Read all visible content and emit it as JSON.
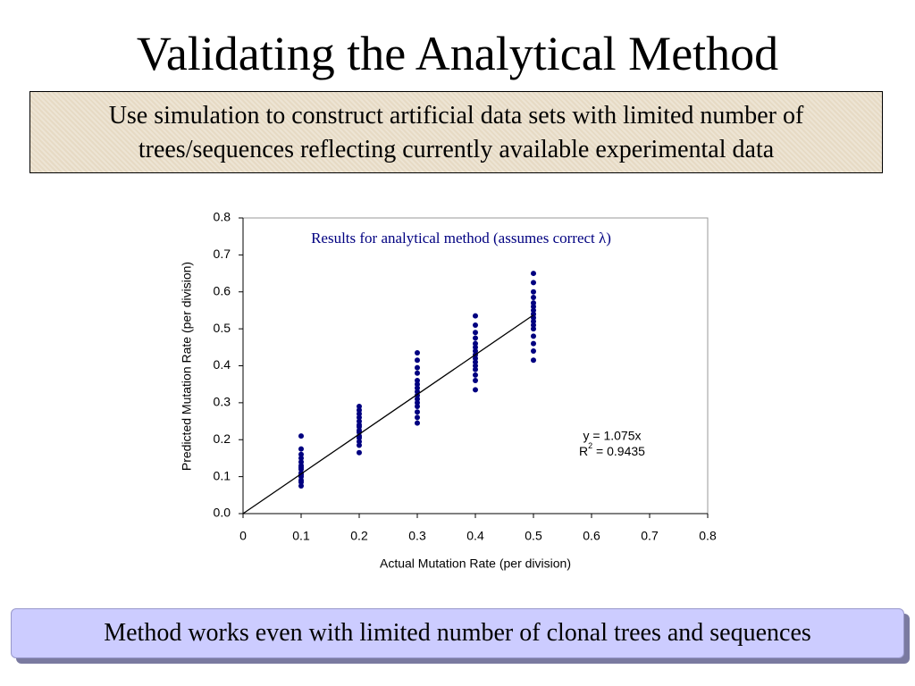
{
  "title": "Validating the Analytical Method",
  "intro": "Use simulation to construct artificial data sets with limited number of trees/sequences reflecting currently available experimental data",
  "conclusion": "Method works even with limited number of clonal trees and sequences",
  "chart_data": {
    "type": "scatter",
    "title": "Results for analytical method (assumes correct λ)",
    "x_label": "Actual Mutation Rate (per division)",
    "y_label": "Predicted Mutation Rate (per division)",
    "color": "#000080",
    "x": [
      0.1,
      0.1,
      0.1,
      0.1,
      0.1,
      0.1,
      0.1,
      0.1,
      0.1,
      0.1,
      0.1,
      0.1,
      0.1,
      0.1,
      0.2,
      0.2,
      0.2,
      0.2,
      0.2,
      0.2,
      0.2,
      0.2,
      0.2,
      0.2,
      0.2,
      0.2,
      0.2,
      0.2,
      0.3,
      0.3,
      0.3,
      0.3,
      0.3,
      0.3,
      0.3,
      0.3,
      0.3,
      0.3,
      0.3,
      0.3,
      0.3,
      0.3,
      0.3,
      0.4,
      0.4,
      0.4,
      0.4,
      0.4,
      0.4,
      0.4,
      0.4,
      0.4,
      0.4,
      0.4,
      0.4,
      0.4,
      0.4,
      0.4,
      0.5,
      0.5,
      0.5,
      0.5,
      0.5,
      0.5,
      0.5,
      0.5,
      0.5,
      0.5,
      0.5,
      0.5,
      0.5,
      0.5,
      0.5,
      0.5
    ],
    "values": [
      0.075,
      0.085,
      0.09,
      0.1,
      0.105,
      0.11,
      0.12,
      0.125,
      0.13,
      0.14,
      0.15,
      0.16,
      0.175,
      0.21,
      0.165,
      0.185,
      0.195,
      0.205,
      0.21,
      0.22,
      0.225,
      0.235,
      0.24,
      0.25,
      0.26,
      0.27,
      0.28,
      0.29,
      0.245,
      0.26,
      0.275,
      0.29,
      0.3,
      0.31,
      0.32,
      0.33,
      0.34,
      0.35,
      0.36,
      0.38,
      0.395,
      0.415,
      0.435,
      0.335,
      0.36,
      0.375,
      0.39,
      0.4,
      0.41,
      0.42,
      0.43,
      0.44,
      0.45,
      0.46,
      0.475,
      0.49,
      0.51,
      0.535,
      0.415,
      0.44,
      0.46,
      0.48,
      0.5,
      0.51,
      0.52,
      0.53,
      0.54,
      0.55,
      0.56,
      0.57,
      0.585,
      0.6,
      0.625,
      0.65
    ],
    "trendline": {
      "slope": 1.075,
      "x": [
        0,
        0.5
      ]
    },
    "annotation": {
      "equation": "y = 1.075x",
      "r2": [
        "R",
        "2",
        " = 0.9435"
      ]
    },
    "xlim": [
      0,
      0.8
    ],
    "xticks": [
      0,
      0.1,
      0.2,
      0.3,
      0.4,
      0.5,
      0.6,
      0.7,
      0.8
    ],
    "ylim": [
      0,
      0.8
    ],
    "yticks": [
      {
        "value": 0,
        "label": "0.0"
      },
      0.1,
      0.2,
      0.3,
      0.4,
      0.5,
      0.6,
      0.7,
      0.8
    ]
  }
}
